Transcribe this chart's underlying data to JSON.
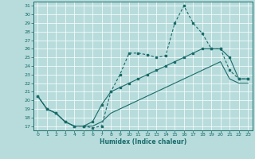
{
  "xlabel": "Humidex (Indice chaleur)",
  "xlim": [
    -0.5,
    23.5
  ],
  "ylim": [
    16.5,
    31.5
  ],
  "yticks": [
    17,
    18,
    19,
    20,
    21,
    22,
    23,
    24,
    25,
    26,
    27,
    28,
    29,
    30,
    31
  ],
  "xticks": [
    0,
    1,
    2,
    3,
    4,
    5,
    6,
    7,
    8,
    9,
    10,
    11,
    12,
    13,
    14,
    15,
    16,
    17,
    18,
    19,
    20,
    21,
    22,
    23
  ],
  "bg_color": "#b8dcdc",
  "line_color": "#1a6b6b",
  "grid_color": "#ffffff",
  "line1_x": [
    0,
    1,
    2,
    3,
    4,
    5,
    6,
    7,
    8,
    9,
    10,
    11,
    12,
    13,
    14,
    15,
    16,
    17,
    18,
    19,
    20,
    21,
    22,
    23
  ],
  "line1_y": [
    20.5,
    19.0,
    18.5,
    17.5,
    17.0,
    17.0,
    16.8,
    17.0,
    21.0,
    23.0,
    25.5,
    25.5,
    25.3,
    25.0,
    25.2,
    29.0,
    31.0,
    29.0,
    27.8,
    26.0,
    26.0,
    23.5,
    22.5,
    22.5
  ],
  "line2_x": [
    0,
    1,
    2,
    3,
    4,
    5,
    6,
    7,
    8,
    9,
    10,
    11,
    12,
    13,
    14,
    15,
    16,
    17,
    18,
    19,
    20,
    21,
    22,
    23
  ],
  "line2_y": [
    20.5,
    19.0,
    18.5,
    17.5,
    17.0,
    17.0,
    17.5,
    19.5,
    21.0,
    21.5,
    22.0,
    22.5,
    23.0,
    23.5,
    24.0,
    24.5,
    25.0,
    25.5,
    26.0,
    26.0,
    26.0,
    25.0,
    22.5,
    22.5
  ],
  "line3_x": [
    0,
    1,
    2,
    3,
    4,
    5,
    6,
    7,
    8,
    9,
    10,
    11,
    12,
    13,
    14,
    15,
    16,
    17,
    18,
    19,
    20,
    21,
    22,
    23
  ],
  "line3_y": [
    20.5,
    19.0,
    18.5,
    17.5,
    17.0,
    17.0,
    17.0,
    17.5,
    18.5,
    19.0,
    19.5,
    20.0,
    20.5,
    21.0,
    21.5,
    22.0,
    22.5,
    23.0,
    23.5,
    24.0,
    24.5,
    22.5,
    22.0,
    22.0
  ]
}
